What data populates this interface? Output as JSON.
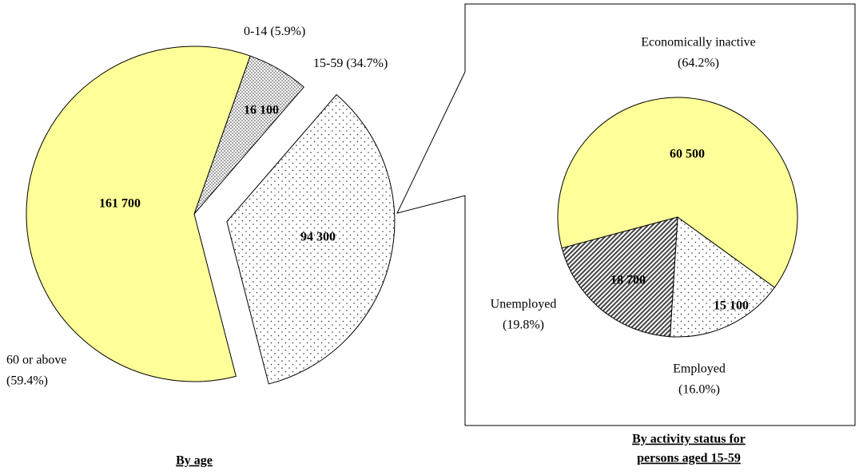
{
  "chart_data": [
    {
      "type": "pie",
      "title": "By age",
      "categories": [
        "0-14",
        "15-59",
        "60 or above"
      ],
      "values": [
        16100,
        94300,
        161700
      ],
      "value_labels": [
        "16 100",
        "94 300",
        "161 700"
      ],
      "percent_labels": [
        "(5.9%)",
        "(34.7%)",
        "(59.4%)"
      ],
      "fills": [
        "dense-dots",
        "sparse-dots",
        "#ffff99"
      ],
      "exploded": [
        false,
        true,
        false
      ]
    },
    {
      "type": "pie",
      "title": [
        "By activity status for",
        "persons aged 15-59"
      ],
      "categories": [
        "Economically inactive",
        "Employed",
        "Unemployed"
      ],
      "values": [
        60500,
        15100,
        18700
      ],
      "value_labels": [
        "60 500",
        "15 100",
        "18 700"
      ],
      "percent_labels": [
        "(64.2%)",
        "(16.0%)",
        "(19.8%)"
      ],
      "fills": [
        "#ffff99",
        "sparse-dots",
        "hatch"
      ],
      "exploded": [
        false,
        false,
        false
      ]
    }
  ]
}
